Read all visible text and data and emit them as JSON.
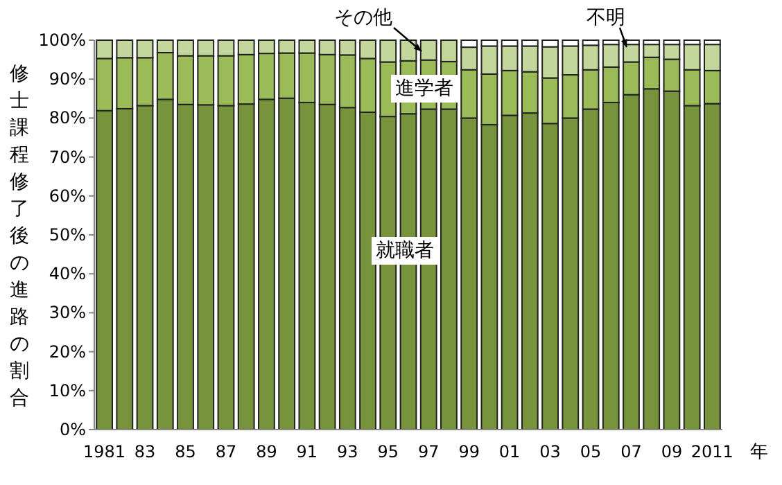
{
  "chart_data": {
    "type": "bar",
    "stacked": true,
    "ylabel": "修士課程修了後の進路の割合",
    "xlabel": "年",
    "categories": [
      "1981",
      null,
      "83",
      null,
      "85",
      null,
      "87",
      null,
      "89",
      null,
      "91",
      null,
      "93",
      null,
      "95",
      null,
      "97",
      null,
      "99",
      null,
      "01",
      null,
      "03",
      null,
      "05",
      null,
      "07",
      null,
      "09",
      null,
      "2011"
    ],
    "ylim": [
      0,
      100
    ],
    "yticks": [
      {
        "value": 0,
        "label": "0%"
      },
      {
        "value": 10,
        "label": "10%"
      },
      {
        "value": 20,
        "label": "20%"
      },
      {
        "value": 30,
        "label": "30%"
      },
      {
        "value": 40,
        "label": "40%"
      },
      {
        "value": 50,
        "label": "50%"
      },
      {
        "value": 60,
        "label": "60%"
      },
      {
        "value": 70,
        "label": "70%"
      },
      {
        "value": 80,
        "label": "80%"
      },
      {
        "value": 90,
        "label": "90%"
      },
      {
        "value": 100,
        "label": "100%"
      }
    ],
    "grid": false,
    "legend": false,
    "series": [
      {
        "name": "就職者",
        "color": "#77933c",
        "values": [
          81.9,
          82.4,
          83.2,
          84.8,
          83.5,
          83.4,
          83.2,
          83.6,
          84.8,
          85.1,
          84.0,
          83.5,
          82.7,
          81.5,
          80.4,
          81.1,
          82.3,
          82.3,
          80.0,
          78.3,
          80.7,
          81.3,
          78.6,
          80.0,
          82.3,
          84.0,
          86.0,
          87.5,
          86.9,
          83.2,
          83.7
        ]
      },
      {
        "name": "進学者",
        "color": "#9bbb59",
        "values": [
          13.4,
          13.1,
          12.3,
          12.0,
          12.5,
          12.6,
          12.8,
          12.7,
          11.8,
          11.6,
          12.7,
          12.8,
          13.5,
          13.8,
          14.0,
          13.6,
          12.6,
          12.2,
          12.4,
          13.0,
          11.5,
          10.6,
          11.7,
          11.1,
          10.1,
          9.1,
          8.4,
          8.1,
          8.2,
          9.2,
          8.5
        ]
      },
      {
        "name": "その他",
        "color": "#c3d69b",
        "values": [
          4.7,
          4.5,
          4.5,
          3.2,
          4.0,
          4.0,
          4.0,
          3.7,
          3.4,
          3.3,
          3.3,
          3.7,
          3.8,
          4.7,
          5.6,
          5.3,
          5.1,
          5.5,
          5.8,
          7.2,
          6.3,
          6.6,
          8.0,
          7.4,
          6.3,
          5.8,
          4.5,
          3.3,
          3.8,
          6.5,
          6.7
        ]
      },
      {
        "name": "不明",
        "color": "#ffffff",
        "values": [
          0,
          0,
          0,
          0,
          0,
          0,
          0,
          0,
          0,
          0,
          0,
          0,
          0,
          0,
          0,
          0,
          0,
          0,
          1.8,
          1.5,
          1.5,
          1.5,
          1.7,
          1.5,
          1.3,
          1.1,
          1.1,
          1.1,
          1.1,
          1.1,
          1.1
        ]
      }
    ]
  }
}
